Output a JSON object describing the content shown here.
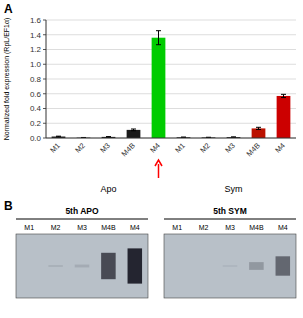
{
  "chart_data": [
    {
      "type": "bar",
      "title": "A",
      "ylabel": "Normalized fold expression (RpL/EF1α)",
      "categories": [
        "M1",
        "M2",
        "M3",
        "M4B",
        "M4",
        "M1",
        "M2",
        "M3",
        "M4B",
        "M4"
      ],
      "values": [
        0.02,
        0.005,
        0.015,
        0.11,
        1.36,
        0.01,
        0.008,
        0.012,
        0.13,
        0.57
      ],
      "errors": [
        0.005,
        0.002,
        0.004,
        0.012,
        0.095,
        0.003,
        0.002,
        0.003,
        0.015,
        0.022
      ],
      "colors": [
        "#1a1a1a",
        "#1a1a1a",
        "#1a1a1a",
        "#1a1a1a",
        "#00cc00",
        "#1a1a1a",
        "#1a1a1a",
        "#1a1a1a",
        "#bb1100",
        "#cc0000"
      ],
      "ylim": [
        0,
        1.6
      ],
      "yticks": [
        {
          "value": 0,
          "label": "0.0"
        },
        0.2,
        0.4,
        0.6,
        0.8,
        {
          "value": 1,
          "label": "1.0"
        },
        1.2,
        1.4,
        1.6
      ],
      "grid": true,
      "annotations": [
        "Apo",
        "Sym"
      ]
    },
    {
      "type": "blot",
      "title": "5th APO",
      "annotations": [
        "B"
      ],
      "color": "#b8c0c8",
      "categories": [
        "M1",
        "M2",
        "M3",
        "M4B",
        "M4"
      ],
      "values": [
        0.0,
        0.05,
        0.08,
        0.75,
        1.0
      ]
    },
    {
      "type": "blot",
      "title": "5th SYM",
      "color": "#b8c0c8",
      "categories": [
        "M1",
        "M2",
        "M3",
        "M4B",
        "M4"
      ],
      "values": [
        0.0,
        0.0,
        0.04,
        0.22,
        0.55
      ]
    }
  ]
}
